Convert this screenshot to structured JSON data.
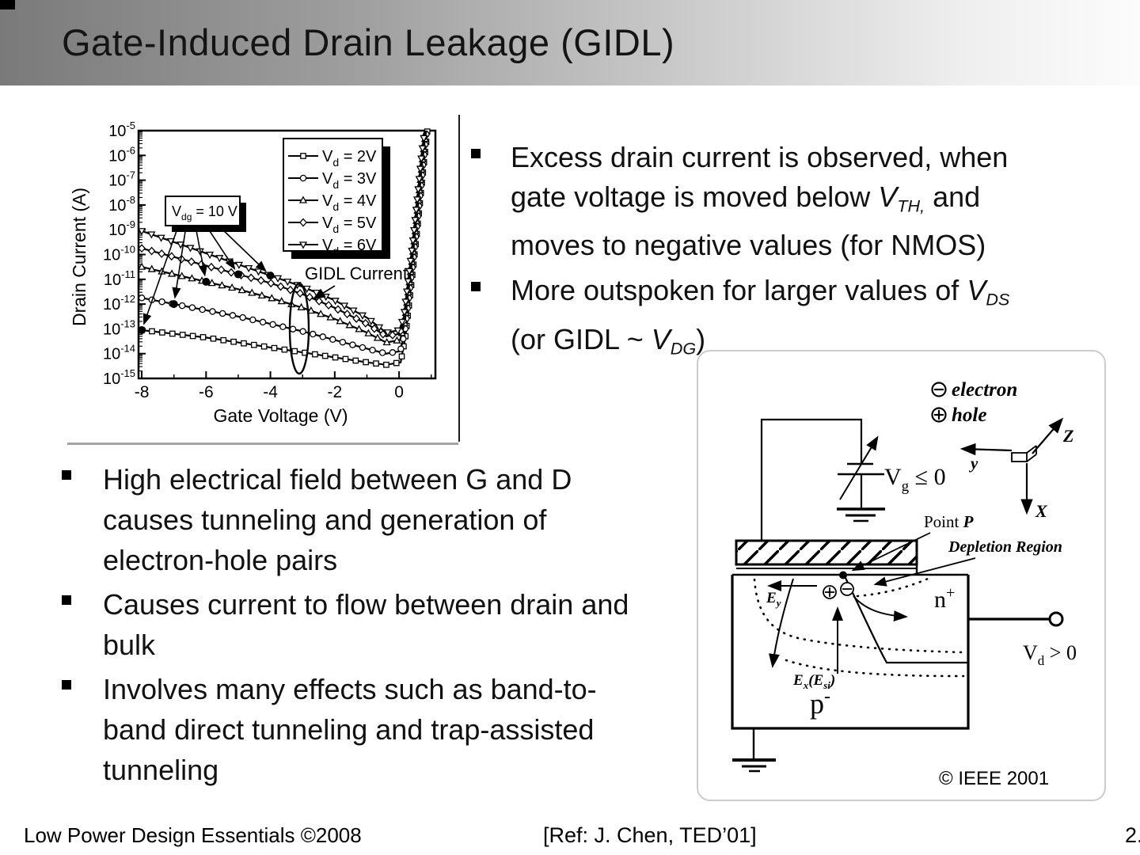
{
  "slide": {
    "title": "Gate-Induced Drain Leakage (GIDL)",
    "footer_left": "Low Power Design Essentials ©2008",
    "footer_center": "[Ref: J. Chen, TED’01]",
    "footer_right": "2."
  },
  "right_bullets": [
    {
      "segments": [
        {
          "t": "Excess drain current is observed, when"
        },
        {
          "br": true
        },
        {
          "t": "gate voltage is moved below "
        },
        {
          "t": "V",
          "s": "i"
        },
        {
          "t": "TH,",
          "s": "isub"
        },
        {
          "t": " and"
        },
        {
          "br": true
        },
        {
          "t": "moves to negative values (for NMOS)"
        }
      ]
    },
    {
      "segments": [
        {
          "t": "More outspoken for larger values of "
        },
        {
          "t": "V",
          "s": "i"
        },
        {
          "t": "DS",
          "s": "isub"
        },
        {
          "br": true
        },
        {
          "t": "(or GIDL ~ "
        },
        {
          "t": "V",
          "s": "i"
        },
        {
          "t": "DG",
          "s": "isub"
        },
        {
          "t": ")"
        }
      ]
    }
  ],
  "left_bullets": [
    {
      "segments": [
        {
          "t": "High electrical field between G and D"
        },
        {
          "br": true
        },
        {
          "t": "causes tunneling and generation of"
        },
        {
          "br": true
        },
        {
          "t": "electron-hole pairs"
        }
      ]
    },
    {
      "segments": [
        {
          "t": "Causes current to flow between drain and"
        },
        {
          "br": true
        },
        {
          "t": "bulk"
        }
      ]
    },
    {
      "segments": [
        {
          "t": "Involves many effects such as band-to-"
        },
        {
          "br": true
        },
        {
          "t": "band direct tunneling and trap-assisted"
        },
        {
          "br": true
        },
        {
          "t": "tunneling"
        }
      ]
    }
  ],
  "chart_data": {
    "type": "line",
    "xlabel": "Gate Voltage (V)",
    "ylabel": "Drain Current (A)",
    "xlim": [
      -8.1,
      1.13
    ],
    "x_major_ticks": [
      -8,
      -6,
      -4,
      -2,
      0
    ],
    "x_minor_ticks": [
      -7,
      -5,
      -3,
      -1,
      1
    ],
    "y_exp_range": [
      -5,
      -15
    ],
    "y_scale": "log10",
    "grid": false,
    "legend_position": "upper-right",
    "series": [
      {
        "label": {
          "pre": "V",
          "sub": "d",
          "post": " = 2V"
        },
        "marker": "square",
        "points": [
          [
            -8,
            -13.05
          ],
          [
            -7,
            -13.2
          ],
          [
            -6,
            -13.35
          ],
          [
            -5,
            -13.55
          ],
          [
            -4,
            -13.75
          ],
          [
            -3,
            -13.95
          ],
          [
            -2,
            -14.15
          ],
          [
            -1,
            -14.35
          ],
          [
            -0.4,
            -14.45
          ],
          [
            0.05,
            -14.35
          ],
          [
            0.2,
            -13.3
          ],
          [
            0.33,
            -11.8
          ],
          [
            0.45,
            -10.4
          ],
          [
            0.55,
            -9.2
          ],
          [
            0.65,
            -7.9
          ],
          [
            0.75,
            -6.6
          ],
          [
            0.85,
            -5.4
          ],
          [
            0.88,
            -5.0
          ]
        ]
      },
      {
        "label": {
          "pre": "V",
          "sub": "d",
          "post": " = 3V"
        },
        "marker": "circle",
        "points": [
          [
            -8,
            -11.75
          ],
          [
            -7,
            -12.0
          ],
          [
            -6,
            -12.25
          ],
          [
            -5,
            -12.5
          ],
          [
            -4,
            -12.8
          ],
          [
            -3,
            -13.1
          ],
          [
            -2,
            -13.45
          ],
          [
            -1,
            -13.8
          ],
          [
            -0.4,
            -14.0
          ],
          [
            0.04,
            -13.9
          ],
          [
            0.18,
            -13.1
          ],
          [
            0.31,
            -11.6
          ],
          [
            0.44,
            -10.2
          ],
          [
            0.54,
            -9.0
          ],
          [
            0.64,
            -7.7
          ],
          [
            0.74,
            -6.4
          ],
          [
            0.84,
            -5.2
          ],
          [
            0.86,
            -5.0
          ]
        ]
      },
      {
        "label": {
          "pre": "V",
          "sub": "d",
          "post": " = 4V"
        },
        "marker": "triangle",
        "points": [
          [
            -8,
            -10.5
          ],
          [
            -7,
            -10.8
          ],
          [
            -6,
            -11.1
          ],
          [
            -5,
            -11.4
          ],
          [
            -4,
            -11.75
          ],
          [
            -3,
            -12.15
          ],
          [
            -2,
            -12.6
          ],
          [
            -1,
            -13.15
          ],
          [
            -0.4,
            -13.55
          ],
          [
            0.03,
            -13.45
          ],
          [
            0.17,
            -12.8
          ],
          [
            0.3,
            -11.4
          ],
          [
            0.43,
            -10.0
          ],
          [
            0.53,
            -8.8
          ],
          [
            0.63,
            -7.5
          ],
          [
            0.73,
            -6.2
          ],
          [
            0.83,
            -5.1
          ],
          [
            0.85,
            -5.0
          ]
        ]
      },
      {
        "label": {
          "pre": "V",
          "sub": "d",
          "post": " = 5V"
        },
        "marker": "diamond",
        "points": [
          [
            -8,
            -9.75
          ],
          [
            -7,
            -10.1
          ],
          [
            -6,
            -10.45
          ],
          [
            -5,
            -10.8
          ],
          [
            -4,
            -11.15
          ],
          [
            -3,
            -11.6
          ],
          [
            -2,
            -12.15
          ],
          [
            -1,
            -12.8
          ],
          [
            -0.4,
            -13.3
          ],
          [
            0.02,
            -13.2
          ],
          [
            0.16,
            -12.6
          ],
          [
            0.29,
            -11.2
          ],
          [
            0.42,
            -9.8
          ],
          [
            0.52,
            -8.6
          ],
          [
            0.62,
            -7.3
          ],
          [
            0.72,
            -6.0
          ],
          [
            0.81,
            -5.0
          ]
        ]
      },
      {
        "label": {
          "pre": "V",
          "sub": "d",
          "post": " = 6V"
        },
        "marker": "triangle-down",
        "points": [
          [
            -8,
            -9.05
          ],
          [
            -7,
            -9.5
          ],
          [
            -6,
            -9.95
          ],
          [
            -5,
            -10.4
          ],
          [
            -4,
            -10.85
          ],
          [
            -3,
            -11.3
          ],
          [
            -2,
            -11.85
          ],
          [
            -1,
            -12.55
          ],
          [
            -0.4,
            -13.15
          ],
          [
            0.01,
            -13.05
          ],
          [
            0.15,
            -12.5
          ],
          [
            0.28,
            -11.1
          ],
          [
            0.41,
            -9.7
          ],
          [
            0.51,
            -8.5
          ],
          [
            0.61,
            -7.2
          ],
          [
            0.71,
            -5.9
          ],
          [
            0.8,
            -5.0
          ]
        ]
      }
    ],
    "vdg_annotation": {
      "label": {
        "pre": "V",
        "sub": "dg",
        "post": " = 10 V"
      },
      "points": [
        [
          -8,
          -13.05
        ],
        [
          -7,
          -12.0
        ],
        [
          -6,
          -11.1
        ],
        [
          -5,
          -10.8
        ],
        [
          -4,
          -10.85
        ]
      ]
    },
    "gidl_annotation": {
      "label": "GIDL Current"
    }
  },
  "diagram": {
    "legend": {
      "electron": "electron",
      "hole": "hole"
    },
    "axes": {
      "x": "X",
      "y": "y",
      "z": "Z"
    },
    "vg": {
      "pre": "V",
      "sub": "g",
      "post": " ≤ 0"
    },
    "point_p": {
      "pre": "Point ",
      "name": "P"
    },
    "depletion": "Depletion Region",
    "n_plus": {
      "base": "n",
      "sup": "+"
    },
    "vd": {
      "pre": "V",
      "sub": "d",
      "post": " > 0"
    },
    "ey": {
      "base": "E",
      "sub": "y"
    },
    "ex": {
      "p1": "E",
      "s1": "x",
      "p2": "(E",
      "s2": "si",
      "p3": ")"
    },
    "p_minus": {
      "base": "p",
      "sup": "-"
    },
    "copyright": "© IEEE 2001"
  }
}
